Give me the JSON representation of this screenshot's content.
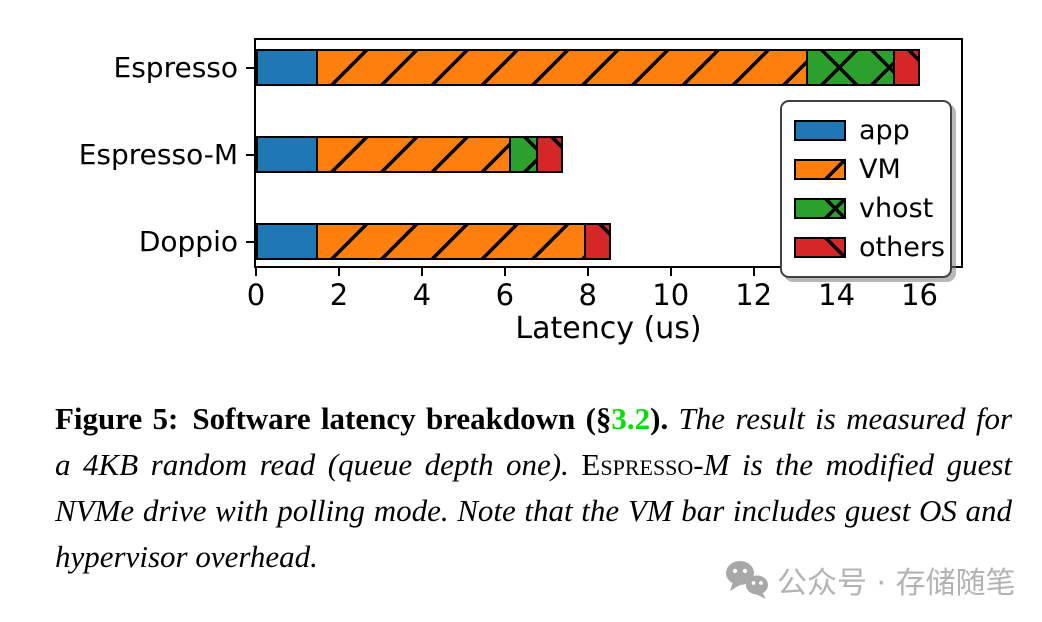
{
  "chart_data": {
    "type": "bar",
    "orientation": "horizontal",
    "stacked": true,
    "title": "",
    "xlabel": "Latency (us)",
    "ylabel": "",
    "xlim": [
      0,
      17
    ],
    "xticks": [
      0,
      2,
      4,
      6,
      8,
      10,
      12,
      14,
      16
    ],
    "grid": false,
    "categories": [
      "Espresso",
      "Espresso-M",
      "Doppio"
    ],
    "series": [
      {
        "name": "app",
        "color": "#1f77b4",
        "hatch": "",
        "values": [
          1.5,
          1.5,
          1.5
        ]
      },
      {
        "name": "VM",
        "color": "#ff7f0e",
        "hatch": "/",
        "values": [
          11.85,
          4.7,
          6.5
        ]
      },
      {
        "name": "vhost",
        "color": "#2ca02c",
        "hatch": "x",
        "values": [
          2.15,
          0.7,
          0
        ]
      },
      {
        "name": "others",
        "color": "#d62728",
        "hatch": "\\",
        "values": [
          0.65,
          0.65,
          0.65
        ]
      }
    ],
    "totals": [
      16.15,
      7.55,
      8.65
    ],
    "legend": {
      "position": "upper right",
      "entries": [
        "app",
        "VM",
        "vhost",
        "others"
      ]
    }
  },
  "caption": {
    "figure_label": "Figure 5:",
    "title_bold": "Software latency breakdown (§",
    "section_ref": "3.2",
    "section_ref_color": "#00e000",
    "title_close": ").",
    "sentence_1": "The result is measured for a 4KB random read (queue depth one).",
    "name_smallcaps": "Espresso-",
    "name_suffix_italic": "M",
    "sentence_2": "is the modified guest NVMe drive with polling mode. Note that the VM bar includes guest OS and hypervisor overhead."
  },
  "watermark": {
    "icon": "wechat-icon",
    "text": "公众号 · 存储随笔",
    "color": "#b3b3b3"
  }
}
